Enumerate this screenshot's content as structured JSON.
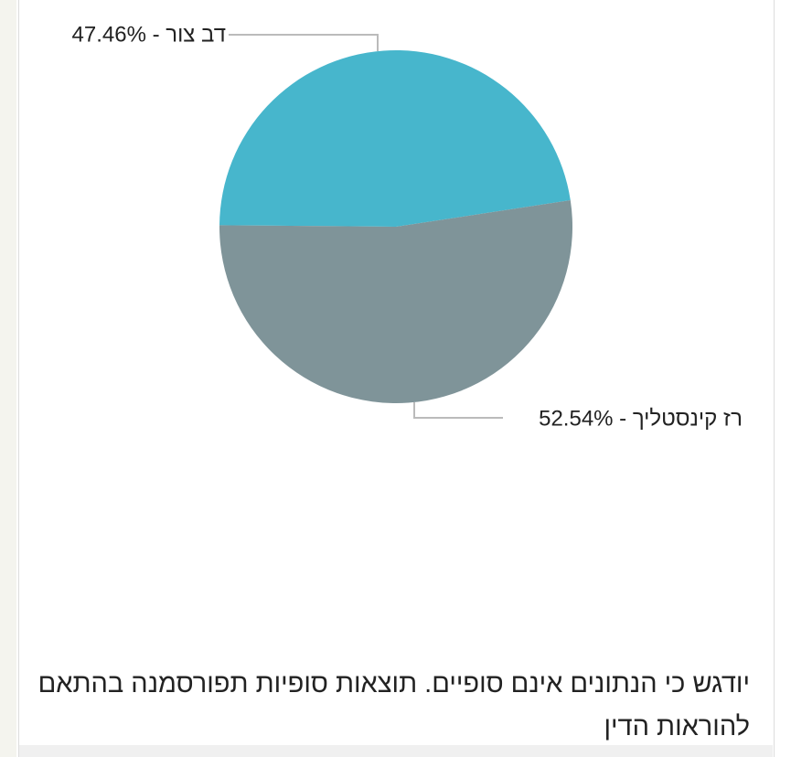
{
  "chart_data": {
    "type": "pie",
    "values": [
      47.46,
      52.54
    ],
    "value_labels": [
      "דב צור - 47.46%",
      "רז קינסטליך - 52.54%"
    ],
    "colors": [
      "#47b6cc",
      "#7f9499"
    ],
    "footnote": "יודגש כי הנתונים אינם סופיים. תוצאות סופיות תפורסמנה בהתאם להוראות הדין"
  }
}
